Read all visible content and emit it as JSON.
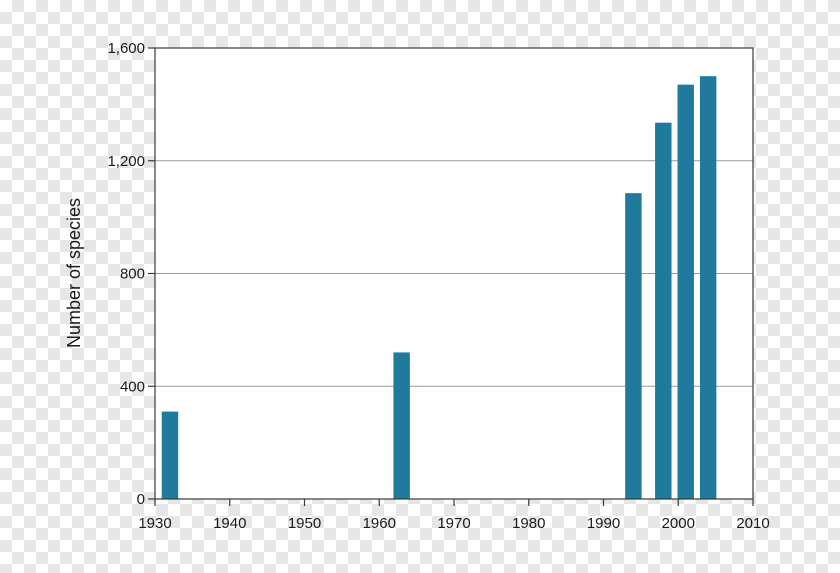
{
  "chart_data": {
    "type": "bar",
    "title": "",
    "xlabel": "",
    "ylabel": "Number of species",
    "xlim": [
      1930,
      2010
    ],
    "ylim": [
      0,
      1600
    ],
    "x_ticks": [
      1930,
      1940,
      1950,
      1960,
      1970,
      1980,
      1990,
      2000,
      2010
    ],
    "y_ticks": [
      0,
      400,
      800,
      1200,
      1600
    ],
    "y_tick_labels": [
      "0",
      "400",
      "800",
      "1,200",
      "1,600"
    ],
    "grid": "horizontal",
    "bar_color": "#1f7a9c",
    "bars": [
      {
        "x": 1932,
        "value": 310
      },
      {
        "x": 1963,
        "value": 520
      },
      {
        "x": 1994,
        "value": 1085
      },
      {
        "x": 1998,
        "value": 1335
      },
      {
        "x": 2001,
        "value": 1470
      },
      {
        "x": 2004,
        "value": 1500
      }
    ]
  }
}
